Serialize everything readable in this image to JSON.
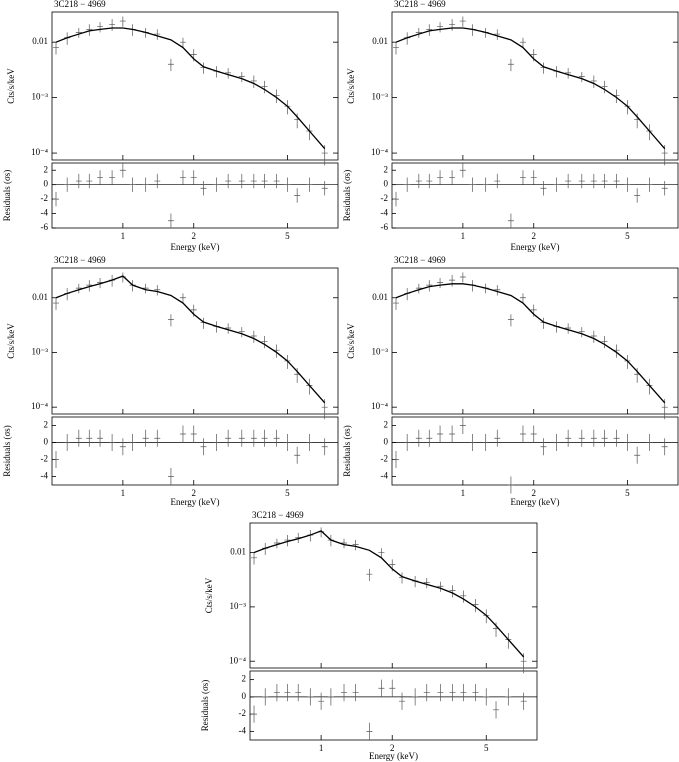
{
  "chart_data": [
    {
      "type": "spectrum",
      "title": "3C218 − 4969",
      "xlabel": "Energy (keV)",
      "ylabel": "Cts/s/keV",
      "residual_label": "Residuals (σs)",
      "xlog": true,
      "ylog": true,
      "x": [
        0.52,
        0.58,
        0.65,
        0.72,
        0.8,
        0.9,
        1.0,
        1.1,
        1.25,
        1.4,
        1.6,
        1.8,
        2.0,
        2.2,
        2.5,
        2.8,
        3.2,
        3.6,
        4.0,
        4.5,
        5.0,
        5.5,
        6.2,
        7.2
      ],
      "values": [
        0.008,
        0.012,
        0.015,
        0.017,
        0.019,
        0.021,
        0.024,
        0.017,
        0.015,
        0.014,
        0.004,
        0.01,
        0.006,
        0.0035,
        0.003,
        0.0028,
        0.0024,
        0.002,
        0.0016,
        0.0011,
        0.0007,
        0.0004,
        0.00025,
        0.0001
      ],
      "errors": [
        0.002,
        0.003,
        0.003,
        0.004,
        0.004,
        0.005,
        0.005,
        0.004,
        0.003,
        0.003,
        0.001,
        0.002,
        0.0015,
        0.0008,
        0.0007,
        0.0006,
        0.0005,
        0.0005,
        0.0004,
        0.0003,
        0.0002,
        0.00012,
        8e-05,
        4e-05
      ],
      "model": [
        0.01,
        0.012,
        0.014,
        0.016,
        0.017,
        0.018,
        0.018,
        0.017,
        0.015,
        0.013,
        0.011,
        0.008,
        0.005,
        0.0036,
        0.003,
        0.0026,
        0.0022,
        0.0018,
        0.0014,
        0.001,
        0.0007,
        0.00045,
        0.00025,
        0.00012
      ],
      "residuals": [
        -2,
        0,
        0.5,
        0.5,
        1,
        1,
        2,
        0,
        0,
        0.5,
        -5,
        1,
        1,
        -0.5,
        0,
        0.5,
        0.5,
        0.5,
        0.5,
        0.5,
        0,
        -1.5,
        0,
        -0.5
      ],
      "xlim": [
        0.5,
        8.2
      ],
      "xticks": [
        1,
        2,
        5
      ],
      "ylim": [
        7.5e-05,
        0.035
      ],
      "yticks": [
        {
          "value": 0.0001,
          "label": "10⁻⁴"
        },
        {
          "value": 0.001,
          "label": "10⁻³"
        },
        0.01
      ],
      "residual_ylim": [
        -6,
        3
      ],
      "residual_yticks": [
        -6,
        -4,
        -2,
        0,
        2
      ]
    },
    {
      "type": "spectrum",
      "title": "3C218 − 4969",
      "xlabel": "Energy (keV)",
      "ylabel": "Cts/s/keV",
      "residual_label": "Residuals (σs)",
      "xlog": true,
      "ylog": true,
      "x": [
        0.52,
        0.58,
        0.65,
        0.72,
        0.8,
        0.9,
        1.0,
        1.1,
        1.25,
        1.4,
        1.6,
        1.8,
        2.0,
        2.2,
        2.5,
        2.8,
        3.2,
        3.6,
        4.0,
        4.5,
        5.0,
        5.5,
        6.2,
        7.2
      ],
      "values": [
        0.008,
        0.012,
        0.015,
        0.017,
        0.019,
        0.021,
        0.024,
        0.017,
        0.015,
        0.014,
        0.004,
        0.01,
        0.006,
        0.0035,
        0.003,
        0.0028,
        0.0024,
        0.002,
        0.0016,
        0.0011,
        0.0007,
        0.0004,
        0.00025,
        0.0001
      ],
      "errors": [
        0.002,
        0.003,
        0.003,
        0.004,
        0.004,
        0.005,
        0.005,
        0.004,
        0.003,
        0.003,
        0.001,
        0.002,
        0.0015,
        0.0008,
        0.0007,
        0.0006,
        0.0005,
        0.0005,
        0.0004,
        0.0003,
        0.0002,
        0.00012,
        8e-05,
        4e-05
      ],
      "model": [
        0.01,
        0.012,
        0.014,
        0.016,
        0.017,
        0.018,
        0.018,
        0.017,
        0.015,
        0.013,
        0.011,
        0.008,
        0.005,
        0.0036,
        0.003,
        0.0026,
        0.0022,
        0.0018,
        0.0014,
        0.001,
        0.0007,
        0.00045,
        0.00025,
        0.00012
      ],
      "residuals": [
        -2,
        0,
        0.5,
        0.5,
        1,
        1,
        2,
        0,
        0,
        0.5,
        -5,
        1,
        1,
        -0.5,
        0,
        0.5,
        0.5,
        0.5,
        0.5,
        0.5,
        0,
        -1.5,
        0,
        -0.5
      ],
      "xlim": [
        0.5,
        8.2
      ],
      "xticks": [
        1,
        2,
        5
      ],
      "ylim": [
        7.5e-05,
        0.035
      ],
      "yticks": [
        {
          "value": 0.0001,
          "label": "10⁻⁴"
        },
        {
          "value": 0.001,
          "label": "10⁻³"
        },
        0.01
      ],
      "residual_ylim": [
        -6,
        3
      ],
      "residual_yticks": [
        -6,
        -4,
        -2,
        0,
        2
      ]
    },
    {
      "type": "spectrum",
      "title": "3C218 − 4969",
      "xlabel": "Energy (keV)",
      "ylabel": "Cts/s/keV",
      "residual_label": "Residuals (σs)",
      "xlog": true,
      "ylog": true,
      "x": [
        0.52,
        0.58,
        0.65,
        0.72,
        0.8,
        0.9,
        1.0,
        1.1,
        1.25,
        1.4,
        1.6,
        1.8,
        2.0,
        2.2,
        2.5,
        2.8,
        3.2,
        3.6,
        4.0,
        4.5,
        5.0,
        5.5,
        6.2,
        7.2
      ],
      "values": [
        0.008,
        0.012,
        0.015,
        0.017,
        0.019,
        0.021,
        0.024,
        0.017,
        0.015,
        0.014,
        0.004,
        0.01,
        0.006,
        0.0035,
        0.003,
        0.0028,
        0.0024,
        0.002,
        0.0016,
        0.0011,
        0.0007,
        0.0004,
        0.00025,
        0.0001
      ],
      "errors": [
        0.002,
        0.003,
        0.003,
        0.004,
        0.004,
        0.005,
        0.005,
        0.004,
        0.003,
        0.003,
        0.001,
        0.002,
        0.0015,
        0.0008,
        0.0007,
        0.0006,
        0.0005,
        0.0005,
        0.0004,
        0.0003,
        0.0002,
        0.00012,
        8e-05,
        4e-05
      ],
      "model": [
        0.01,
        0.012,
        0.014,
        0.016,
        0.018,
        0.021,
        0.025,
        0.017,
        0.014,
        0.013,
        0.011,
        0.008,
        0.005,
        0.0036,
        0.003,
        0.0026,
        0.0022,
        0.0018,
        0.0014,
        0.001,
        0.0007,
        0.00045,
        0.00025,
        0.00012
      ],
      "residuals": [
        -2,
        0,
        0.5,
        0.5,
        0.5,
        0,
        -0.5,
        0,
        0.5,
        0.5,
        -4,
        1,
        1,
        -0.5,
        0,
        0.5,
        0.5,
        0.5,
        0.5,
        0.5,
        0,
        -1.5,
        0,
        -0.5
      ],
      "xlim": [
        0.5,
        8.2
      ],
      "xticks": [
        1,
        2,
        5
      ],
      "ylim": [
        7.5e-05,
        0.035
      ],
      "yticks": [
        {
          "value": 0.0001,
          "label": "10⁻⁴"
        },
        {
          "value": 0.001,
          "label": "10⁻³"
        },
        0.01
      ],
      "residual_ylim": [
        -5,
        3
      ],
      "residual_yticks": [
        -4,
        -2,
        0,
        2
      ]
    },
    {
      "type": "spectrum",
      "title": "3C218 − 4969",
      "xlabel": "Energy (keV)",
      "ylabel": "Cts/s/keV",
      "residual_label": "Residuals (σs)",
      "xlog": true,
      "ylog": true,
      "x": [
        0.52,
        0.58,
        0.65,
        0.72,
        0.8,
        0.9,
        1.0,
        1.1,
        1.25,
        1.4,
        1.6,
        1.8,
        2.0,
        2.2,
        2.5,
        2.8,
        3.2,
        3.6,
        4.0,
        4.5,
        5.0,
        5.5,
        6.2,
        7.2
      ],
      "values": [
        0.008,
        0.012,
        0.015,
        0.017,
        0.019,
        0.021,
        0.024,
        0.017,
        0.015,
        0.014,
        0.004,
        0.01,
        0.006,
        0.0035,
        0.003,
        0.0028,
        0.0024,
        0.002,
        0.0016,
        0.0011,
        0.0007,
        0.0004,
        0.00025,
        0.0001
      ],
      "errors": [
        0.002,
        0.003,
        0.003,
        0.004,
        0.004,
        0.005,
        0.005,
        0.004,
        0.003,
        0.003,
        0.001,
        0.002,
        0.0015,
        0.0008,
        0.0007,
        0.0006,
        0.0005,
        0.0005,
        0.0004,
        0.0003,
        0.0002,
        0.00012,
        8e-05,
        4e-05
      ],
      "model": [
        0.01,
        0.012,
        0.014,
        0.016,
        0.017,
        0.018,
        0.018,
        0.017,
        0.015,
        0.013,
        0.011,
        0.008,
        0.005,
        0.0036,
        0.003,
        0.0026,
        0.0022,
        0.0018,
        0.0014,
        0.001,
        0.0007,
        0.00045,
        0.00025,
        0.00012
      ],
      "residuals": [
        -2,
        0,
        0.5,
        0.5,
        1,
        1,
        2,
        0,
        0,
        0.5,
        -5,
        1,
        1,
        -0.5,
        0,
        0.5,
        0.5,
        0.5,
        0.5,
        0.5,
        0,
        -1.5,
        0,
        -0.5
      ],
      "xlim": [
        0.5,
        8.2
      ],
      "xticks": [
        1,
        2,
        5
      ],
      "ylim": [
        7.5e-05,
        0.035
      ],
      "yticks": [
        {
          "value": 0.0001,
          "label": "10⁻⁴"
        },
        {
          "value": 0.001,
          "label": "10⁻³"
        },
        0.01
      ],
      "residual_ylim": [
        -5,
        3
      ],
      "residual_yticks": [
        -4,
        -2,
        0,
        2
      ]
    },
    {
      "type": "spectrum",
      "title": "3C218 − 4969",
      "xlabel": "Energy (keV)",
      "ylabel": "Cts/s/keV",
      "residual_label": "Residuals (σs)",
      "xlog": true,
      "ylog": true,
      "x": [
        0.52,
        0.58,
        0.65,
        0.72,
        0.8,
        0.9,
        1.0,
        1.1,
        1.25,
        1.4,
        1.6,
        1.8,
        2.0,
        2.2,
        2.5,
        2.8,
        3.2,
        3.6,
        4.0,
        4.5,
        5.0,
        5.5,
        6.2,
        7.2
      ],
      "values": [
        0.008,
        0.012,
        0.015,
        0.017,
        0.019,
        0.021,
        0.024,
        0.017,
        0.015,
        0.014,
        0.004,
        0.01,
        0.006,
        0.0035,
        0.003,
        0.0028,
        0.0024,
        0.002,
        0.0016,
        0.0011,
        0.0007,
        0.0004,
        0.00025,
        0.0001
      ],
      "errors": [
        0.002,
        0.003,
        0.003,
        0.004,
        0.004,
        0.005,
        0.005,
        0.004,
        0.003,
        0.003,
        0.001,
        0.002,
        0.0015,
        0.0008,
        0.0007,
        0.0006,
        0.0005,
        0.0005,
        0.0004,
        0.0003,
        0.0002,
        0.00012,
        8e-05,
        4e-05
      ],
      "model": [
        0.01,
        0.012,
        0.014,
        0.016,
        0.018,
        0.021,
        0.025,
        0.017,
        0.014,
        0.013,
        0.011,
        0.008,
        0.005,
        0.0036,
        0.003,
        0.0026,
        0.0022,
        0.0018,
        0.0014,
        0.001,
        0.0007,
        0.00045,
        0.00025,
        0.00012
      ],
      "residuals": [
        -2,
        0,
        0.5,
        0.5,
        0.5,
        0,
        -0.5,
        0,
        0.5,
        0.5,
        -4,
        1,
        1,
        -0.5,
        0,
        0.5,
        0.5,
        0.5,
        0.5,
        0.5,
        0,
        -1.5,
        0,
        -0.5
      ],
      "xlim": [
        0.5,
        8.2
      ],
      "xticks": [
        1,
        2,
        5
      ],
      "ylim": [
        7.5e-05,
        0.035
      ],
      "yticks": [
        {
          "value": 0.0001,
          "label": "10⁻⁴"
        },
        {
          "value": 0.001,
          "label": "10⁻³"
        },
        0.01
      ],
      "residual_ylim": [
        -5,
        3
      ],
      "residual_yticks": [
        -4,
        -2,
        0,
        2
      ]
    }
  ]
}
